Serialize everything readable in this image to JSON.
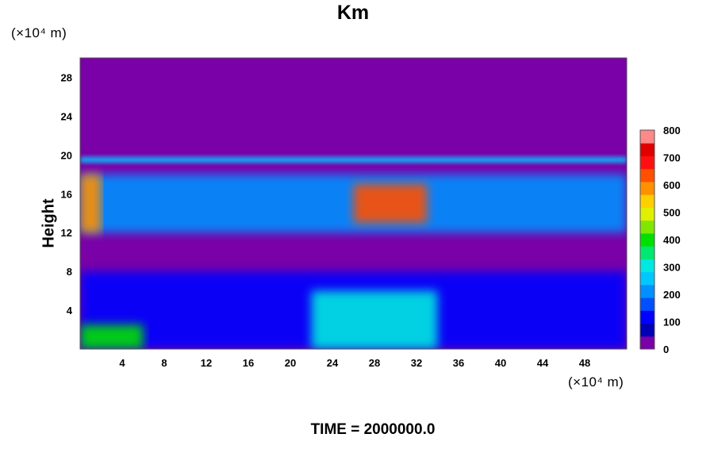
{
  "chart_data": {
    "type": "heatmap",
    "title": "Km",
    "ylabel": "Height",
    "y_unit": "(×10⁴ m)",
    "x_unit": "(×10⁴ m)",
    "footer": "TIME = 2000000.0",
    "xlim": [
      0,
      52
    ],
    "ylim": [
      0,
      30
    ],
    "x_ticks": [
      4,
      8,
      12,
      16,
      20,
      24,
      28,
      32,
      36,
      40,
      44,
      48
    ],
    "y_ticks": [
      4,
      8,
      12,
      16,
      20,
      24,
      28
    ],
    "colorbar": {
      "vmin": 0,
      "vmax": 800,
      "ticks": [
        0,
        100,
        200,
        300,
        400,
        500,
        600,
        700,
        800
      ],
      "colors": [
        "#7a00a8",
        "#0000b4",
        "#0000ff",
        "#0050ff",
        "#0090ff",
        "#00c8ff",
        "#00e8e0",
        "#00e870",
        "#00e000",
        "#80e800",
        "#e0f000",
        "#ffd000",
        "#ff9000",
        "#ff5000",
        "#ff1010",
        "#e00000",
        "#ff8888"
      ]
    },
    "background_value": 0,
    "regions": [
      {
        "x": [
          0,
          52
        ],
        "y": [
          19.2,
          19.8
        ],
        "value": 250
      },
      {
        "x": [
          0,
          52
        ],
        "y": [
          12,
          18
        ],
        "value": 180
      },
      {
        "x": [
          0,
          52
        ],
        "y": [
          0,
          8
        ],
        "value": 120
      },
      {
        "x": [
          22,
          34
        ],
        "y": [
          0,
          6
        ],
        "value": 300
      },
      {
        "x": [
          0,
          6
        ],
        "y": [
          0,
          2.5
        ],
        "value": 380
      },
      {
        "x": [
          26,
          33
        ],
        "y": [
          13,
          17
        ],
        "value": 650
      },
      {
        "x": [
          0,
          2
        ],
        "y": [
          12,
          18
        ],
        "value": 600
      }
    ]
  }
}
